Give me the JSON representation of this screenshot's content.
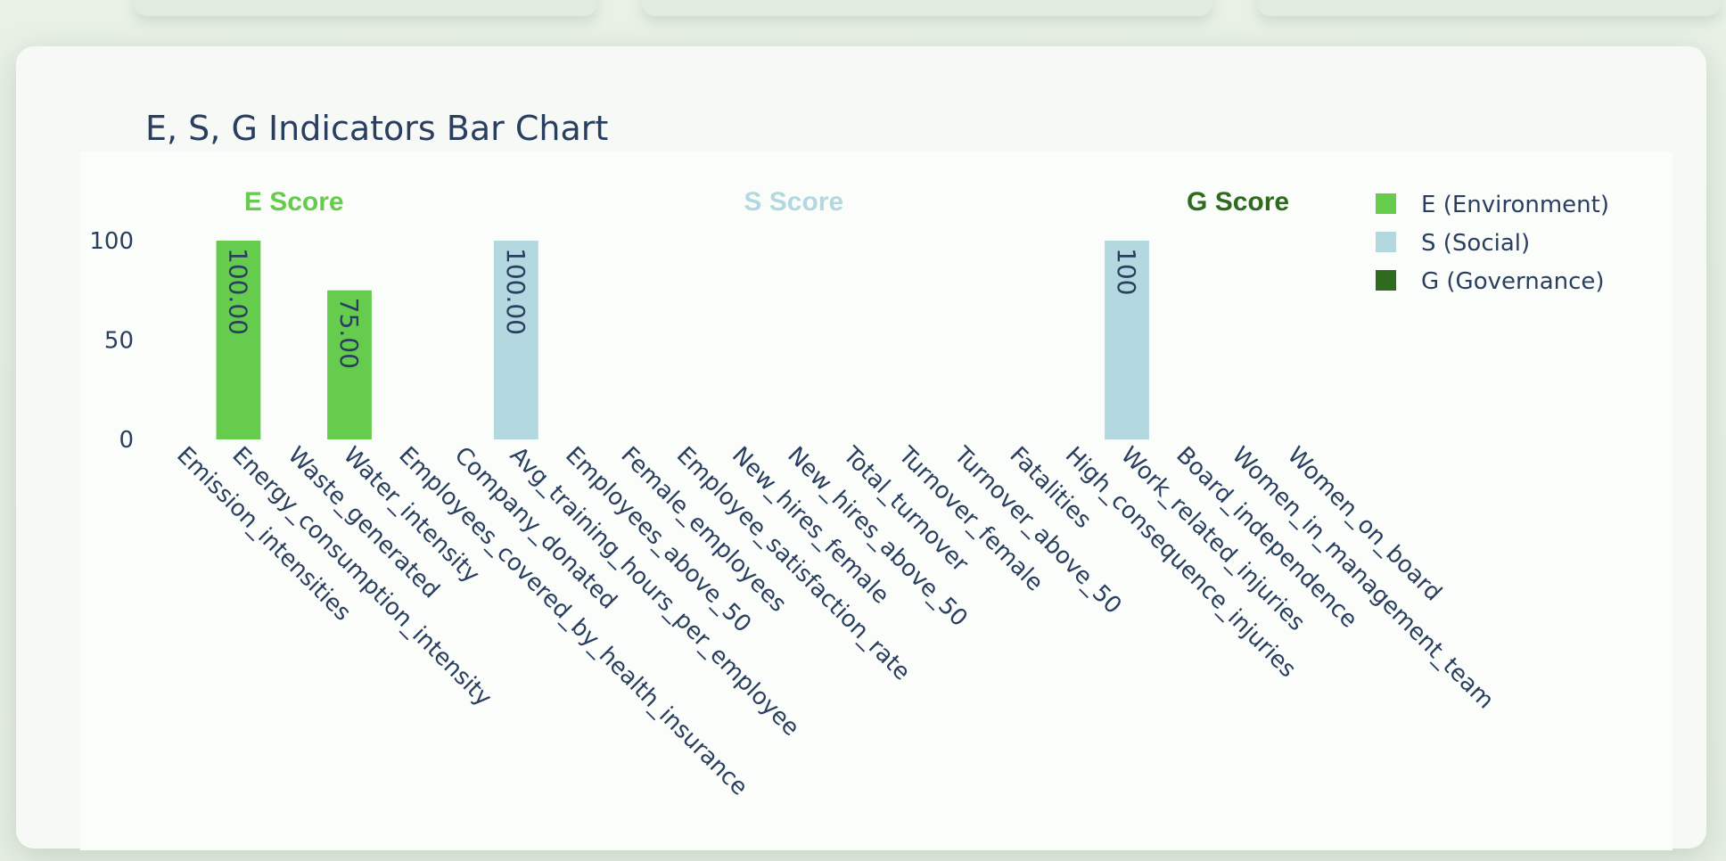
{
  "chart_data": {
    "type": "bar",
    "title": "E, S, G Indicators Bar Chart",
    "ylim": [
      0,
      100
    ],
    "yticks": [
      0,
      50,
      100
    ],
    "categories": [
      "Emission_intensities",
      "Energy_consumption_intensity",
      "Waste_generated",
      "Water_intensity",
      "Employees_covered_by_health_insurance",
      "Company_donated",
      "Avg_training_hours_per_employee",
      "Employees_above_50",
      "Female_employees",
      "Employee_satisfaction_rate",
      "New_hires_female",
      "New_hires_above_50",
      "Total_turnover",
      "Turnover_female",
      "Turnover_above_50",
      "Fatalities",
      "High_consequence_injuries",
      "Work_related_injuries",
      "Board_independence",
      "Women_in_management_team",
      "Women_on_board"
    ],
    "series": [
      {
        "name": "E (Environment)",
        "color": "#66cc4d",
        "values": [
          0,
          100,
          0,
          75,
          0,
          0,
          0,
          0,
          0,
          0,
          0,
          0,
          0,
          0,
          0,
          0,
          0,
          0,
          0,
          0,
          0
        ],
        "labels": [
          "",
          "100.00",
          "",
          "75.00",
          "",
          "",
          "",
          "",
          "",
          "",
          "",
          "",
          "",
          "",
          "",
          "",
          "",
          "",
          "",
          "",
          ""
        ]
      },
      {
        "name": "S (Social)",
        "color": "#b3d8e0",
        "values": [
          0,
          0,
          0,
          0,
          0,
          0,
          100,
          0,
          0,
          0,
          0,
          0,
          0,
          0,
          0,
          0,
          0,
          100,
          0,
          0,
          0
        ],
        "labels": [
          "",
          "",
          "",
          "",
          "",
          "",
          "100.00",
          "",
          "",
          "",
          "",
          "",
          "",
          "",
          "",
          "",
          "",
          "100",
          "",
          "",
          ""
        ]
      },
      {
        "name": "G (Governance)",
        "color": "#2e6b1f",
        "values": [
          0,
          0,
          0,
          0,
          0,
          0,
          0,
          0,
          0,
          0,
          0,
          0,
          0,
          0,
          0,
          0,
          0,
          0,
          0,
          0,
          0
        ],
        "labels": [
          "",
          "",
          "",
          "",
          "",
          "",
          "",
          "",
          "",
          "",
          "",
          "",
          "",
          "",
          "",
          "",
          "",
          "",
          "",
          "",
          ""
        ]
      }
    ],
    "annotations": [
      {
        "text": "E Score",
        "color": "#66cc4d",
        "at_category": 2
      },
      {
        "text": "S Score",
        "color": "#b3d8e0",
        "at_category": 11
      },
      {
        "text": "G Score",
        "color": "#2e6b1f",
        "at_category": 19
      }
    ],
    "legend_position": "top-right",
    "grid": false
  }
}
